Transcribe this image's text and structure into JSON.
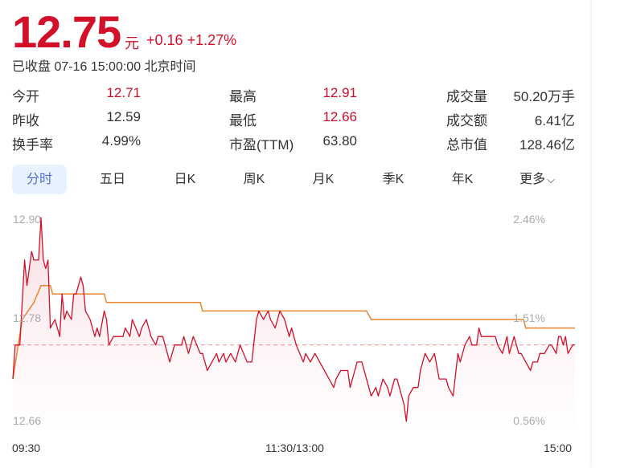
{
  "quote": {
    "price": "12.75",
    "unit": "元",
    "change": "+0.16",
    "change_pct": "+1.27%",
    "status": "已收盘 07-16 15:00:00 北京时间"
  },
  "stats": [
    {
      "label": "今开",
      "value": "12.71",
      "color": "red"
    },
    {
      "label": "最高",
      "value": "12.91",
      "color": "red"
    },
    {
      "label": "成交量",
      "value": "50.20万手",
      "color": "normal"
    },
    {
      "label": "昨收",
      "value": "12.59",
      "color": "normal"
    },
    {
      "label": "最低",
      "value": "12.66",
      "color": "red"
    },
    {
      "label": "成交额",
      "value": "6.41亿",
      "color": "normal"
    },
    {
      "label": "换手率",
      "value": "4.99%",
      "color": "normal"
    },
    {
      "label": "市盈(TTM)",
      "value": "63.80",
      "color": "normal"
    },
    {
      "label": "总市值",
      "value": "128.46亿",
      "color": "normal"
    }
  ],
  "tabs": [
    {
      "label": "分时",
      "active": true
    },
    {
      "label": "五日"
    },
    {
      "label": "日K"
    },
    {
      "label": "周K"
    },
    {
      "label": "月K"
    },
    {
      "label": "季K"
    },
    {
      "label": "年K"
    },
    {
      "label": "更多",
      "icon": "chevron-down-icon"
    }
  ],
  "colors": {
    "up": "#d3102a",
    "avg": "#e8852c",
    "accent": "#4d6fd8"
  },
  "chart_data": {
    "type": "line",
    "y_left_ticks": [
      "12.90",
      "12.78",
      "12.66"
    ],
    "y_right_ticks": [
      "2.46%",
      "1.51%",
      "0.56%"
    ],
    "x_ticks": [
      "09:30",
      "11:30/13:00",
      "15:00"
    ],
    "ylim": [
      12.66,
      12.9
    ],
    "reference_price": 12.75,
    "series": [
      {
        "key": "price",
        "points": [
          [
            "09:30",
            12.71
          ],
          [
            "09:31",
            12.75
          ],
          [
            "09:33",
            12.75
          ],
          [
            "09:34",
            12.8
          ],
          [
            "09:35",
            12.85
          ],
          [
            "09:36",
            12.82
          ],
          [
            "09:38",
            12.86
          ],
          [
            "09:39",
            12.85
          ],
          [
            "09:41",
            12.85
          ],
          [
            "09:42",
            12.9
          ],
          [
            "09:43",
            12.85
          ],
          [
            "09:44",
            12.84
          ],
          [
            "09:45",
            12.85
          ],
          [
            "09:46",
            12.77
          ],
          [
            "09:48",
            12.78
          ],
          [
            "09:50",
            12.76
          ],
          [
            "09:51",
            12.81
          ],
          [
            "09:52",
            12.78
          ],
          [
            "09:53",
            12.79
          ],
          [
            "09:55",
            12.78
          ],
          [
            "09:56",
            12.81
          ],
          [
            "09:57",
            12.81
          ],
          [
            "09:59",
            12.83
          ],
          [
            "10:00",
            12.82
          ],
          [
            "10:01",
            12.79
          ],
          [
            "10:03",
            12.78
          ],
          [
            "10:05",
            12.76
          ],
          [
            "10:06",
            12.77
          ],
          [
            "10:07",
            12.76
          ],
          [
            "10:09",
            12.79
          ],
          [
            "10:10",
            12.78
          ],
          [
            "10:11",
            12.75
          ],
          [
            "10:13",
            12.76
          ],
          [
            "10:17",
            12.76
          ],
          [
            "10:18",
            12.77
          ],
          [
            "10:20",
            12.76
          ],
          [
            "10:21",
            12.78
          ],
          [
            "10:24",
            12.76
          ],
          [
            "10:25",
            12.77
          ],
          [
            "10:27",
            12.78
          ],
          [
            "10:29",
            12.76
          ],
          [
            "10:31",
            12.75
          ],
          [
            "10:32",
            12.76
          ],
          [
            "10:34",
            12.76
          ],
          [
            "10:37",
            12.73
          ],
          [
            "10:39",
            12.75
          ],
          [
            "10:42",
            12.75
          ],
          [
            "10:43",
            12.76
          ],
          [
            "10:45",
            12.74
          ],
          [
            "10:47",
            12.76
          ],
          [
            "10:50",
            12.74
          ],
          [
            "10:51",
            12.74
          ],
          [
            "10:53",
            12.72
          ],
          [
            "10:55",
            12.73
          ],
          [
            "10:57",
            12.74
          ],
          [
            "10:58",
            12.73
          ],
          [
            "11:00",
            12.74
          ],
          [
            "11:01",
            12.73
          ],
          [
            "11:03",
            12.74
          ],
          [
            "11:05",
            12.73
          ],
          [
            "11:07",
            12.75
          ],
          [
            "11:10",
            12.73
          ],
          [
            "11:12",
            12.73
          ],
          [
            "11:14",
            12.78
          ],
          [
            "11:15",
            12.79
          ],
          [
            "11:17",
            12.78
          ],
          [
            "11:19",
            12.79
          ],
          [
            "11:20",
            12.78
          ],
          [
            "11:22",
            12.77
          ],
          [
            "11:24",
            12.79
          ],
          [
            "11:26",
            12.78
          ],
          [
            "11:28",
            12.76
          ],
          [
            "11:29",
            12.77
          ],
          [
            "13:01",
            12.75
          ],
          [
            "13:04",
            12.73
          ],
          [
            "13:05",
            12.74
          ],
          [
            "13:07",
            12.73
          ],
          [
            "13:09",
            12.74
          ],
          [
            "13:11",
            12.73
          ],
          [
            "13:13",
            12.72
          ],
          [
            "13:15",
            12.71
          ],
          [
            "13:17",
            12.7
          ],
          [
            "13:18",
            12.71
          ],
          [
            "13:20",
            12.72
          ],
          [
            "13:23",
            12.72
          ],
          [
            "13:24",
            12.7
          ],
          [
            "13:27",
            12.73
          ],
          [
            "13:29",
            12.73
          ],
          [
            "13:33",
            12.69
          ],
          [
            "13:35",
            12.7
          ],
          [
            "13:36",
            12.69
          ],
          [
            "13:38",
            12.71
          ],
          [
            "13:40",
            12.7
          ],
          [
            "13:41",
            12.69
          ],
          [
            "13:43",
            12.71
          ],
          [
            "13:44",
            12.71
          ],
          [
            "13:47",
            12.68
          ],
          [
            "13:48",
            12.66
          ],
          [
            "13:49",
            12.69
          ],
          [
            "13:51",
            12.7
          ],
          [
            "13:53",
            12.7
          ],
          [
            "13:54",
            12.72
          ],
          [
            "13:56",
            12.74
          ],
          [
            "13:58",
            12.73
          ],
          [
            "14:00",
            12.74
          ],
          [
            "14:02",
            12.71
          ],
          [
            "14:05",
            12.71
          ],
          [
            "14:06",
            12.7
          ],
          [
            "14:08",
            12.69
          ],
          [
            "14:10",
            12.74
          ],
          [
            "14:11",
            12.73
          ],
          [
            "14:13",
            12.75
          ],
          [
            "14:15",
            12.76
          ],
          [
            "14:16",
            12.75
          ],
          [
            "14:18",
            12.75
          ],
          [
            "14:19",
            12.77
          ],
          [
            "14:20",
            12.76
          ],
          [
            "14:26",
            12.76
          ],
          [
            "14:27",
            12.75
          ],
          [
            "14:29",
            12.74
          ],
          [
            "14:31",
            12.76
          ],
          [
            "14:32",
            12.74
          ],
          [
            "14:34",
            12.76
          ],
          [
            "14:36",
            12.74
          ],
          [
            "14:37",
            12.74
          ],
          [
            "14:39",
            12.73
          ],
          [
            "14:41",
            12.72
          ],
          [
            "14:42",
            12.73
          ],
          [
            "14:44",
            12.73
          ],
          [
            "14:45",
            12.74
          ],
          [
            "14:47",
            12.74
          ],
          [
            "14:49",
            12.75
          ],
          [
            "14:50",
            12.75
          ],
          [
            "14:52",
            12.74
          ],
          [
            "14:53",
            12.76
          ],
          [
            "14:54",
            12.76
          ],
          [
            "14:55",
            12.75
          ],
          [
            "14:56",
            12.76
          ],
          [
            "14:57",
            12.74
          ],
          [
            "14:59",
            12.75
          ],
          [
            "15:00",
            12.75
          ]
        ]
      },
      {
        "key": "average",
        "points": [
          [
            "09:30",
            12.71
          ],
          [
            "09:34",
            12.78
          ],
          [
            "09:39",
            12.8
          ],
          [
            "09:42",
            12.82
          ],
          [
            "09:46",
            12.82
          ],
          [
            "09:47",
            12.81
          ],
          [
            "10:09",
            12.81
          ],
          [
            "10:10",
            12.8
          ],
          [
            "10:50",
            12.8
          ],
          [
            "10:51",
            12.79
          ],
          [
            "13:31",
            12.79
          ],
          [
            "13:33",
            12.78
          ],
          [
            "14:38",
            12.78
          ],
          [
            "14:39",
            12.77
          ],
          [
            "15:00",
            12.77
          ]
        ]
      }
    ]
  }
}
